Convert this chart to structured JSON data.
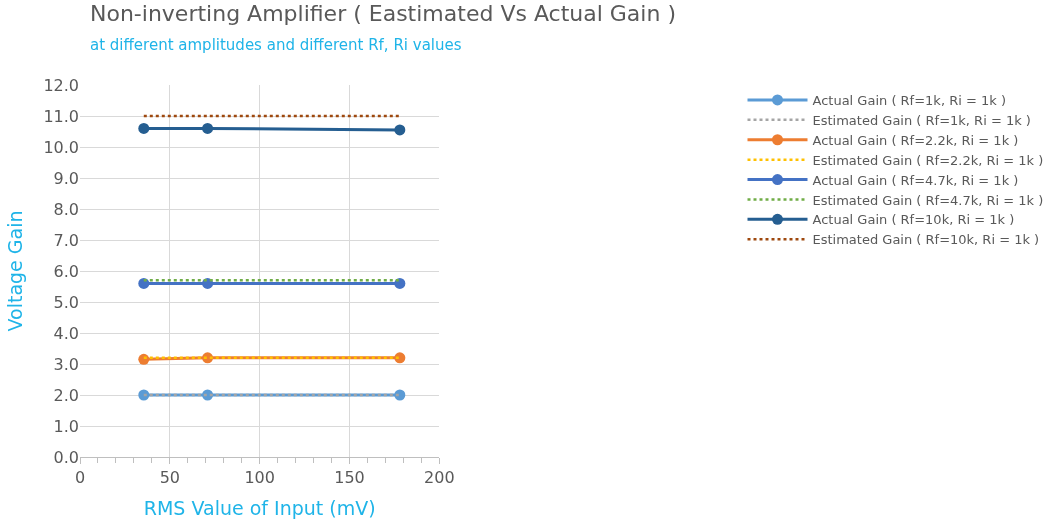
{
  "chart_data": {
    "type": "line",
    "title": "Non-inverting Amplifier ( Eastimated Vs Actual Gain )",
    "subtitle": "at different amplitudes and different Rf, Ri values",
    "xlabel": "RMS Value of Input (mV)",
    "ylabel": "Voltage Gain",
    "x": [
      35.5,
      71,
      178
    ],
    "series": [
      {
        "name": "Actual Gain ( Rf=1k, Ri = 1k )",
        "color": "#5b9bd5",
        "values": [
          2.0,
          2.0,
          2.0
        ],
        "marker": "circle",
        "line_style": "solid"
      },
      {
        "name": "Estimated Gain ( Rf=1k, Ri = 1k )",
        "color": "#a5a5a5",
        "values": [
          2.0,
          2.0,
          2.0
        ],
        "marker": "none",
        "line_style": "dotted"
      },
      {
        "name": "Actual Gain ( Rf=2.2k, Ri = 1k )",
        "color": "#ed7d31",
        "values": [
          3.15,
          3.2,
          3.2
        ],
        "marker": "circle",
        "line_style": "solid"
      },
      {
        "name": "Estimated Gain ( Rf=2.2k, Ri = 1k )",
        "color": "#ffc000",
        "values": [
          3.2,
          3.2,
          3.2
        ],
        "marker": "none",
        "line_style": "dotted"
      },
      {
        "name": "Actual Gain ( Rf=4.7k, Ri = 1k )",
        "color": "#4472c4",
        "values": [
          5.6,
          5.6,
          5.6
        ],
        "marker": "circle",
        "line_style": "solid"
      },
      {
        "name": "Estimated Gain ( Rf=4.7k, Ri = 1k )",
        "color": "#70ad47",
        "values": [
          5.7,
          5.7,
          5.7
        ],
        "marker": "none",
        "line_style": "dotted"
      },
      {
        "name": "Actual Gain ( Rf=10k, Ri = 1k )",
        "color": "#255e91",
        "values": [
          10.6,
          10.6,
          10.55
        ],
        "marker": "circle",
        "line_style": "solid"
      },
      {
        "name": "Estimated Gain ( Rf=10k, Ri = 1k )",
        "color": "#9e480e",
        "values": [
          11.0,
          11.0,
          11.0
        ],
        "marker": "none",
        "line_style": "dotted"
      }
    ],
    "xlim": [
      0,
      200
    ],
    "xticks": [
      0,
      50,
      100,
      150,
      200
    ],
    "ylim": [
      0,
      12
    ],
    "yticks": [
      {
        "value": 0,
        "label": "0.0"
      },
      {
        "value": 1,
        "label": "1.0"
      },
      {
        "value": 2,
        "label": "2.0"
      },
      {
        "value": 3,
        "label": "3.0"
      },
      {
        "value": 4,
        "label": "4.0"
      },
      {
        "value": 5,
        "label": "5.0"
      },
      {
        "value": 6,
        "label": "6.0"
      },
      {
        "value": 7,
        "label": "7.0"
      },
      {
        "value": 8,
        "label": "8.0"
      },
      {
        "value": 9,
        "label": "9.0"
      },
      {
        "value": 10,
        "label": "10.0"
      },
      {
        "value": 11,
        "label": "11.0"
      },
      {
        "value": 12,
        "label": "12.0"
      }
    ],
    "grid": true,
    "legend": "right"
  }
}
